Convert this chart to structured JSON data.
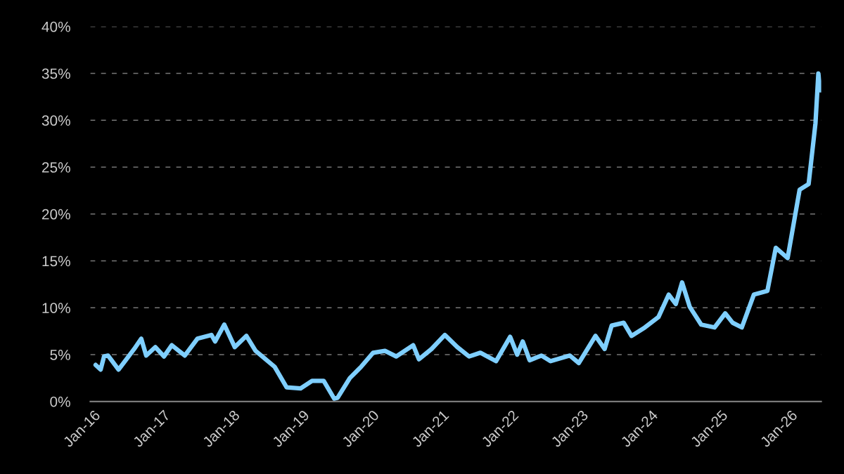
{
  "chart_data": {
    "type": "line",
    "x": [
      "2016-01-12",
      "2016-02-07",
      "2016-02-25",
      "2016-03-17",
      "2016-05-11",
      "2016-08-01",
      "2016-09-07",
      "2016-10-03",
      "2016-11-20",
      "2017-01-04",
      "2017-02-14",
      "2017-04-23",
      "2017-06-28",
      "2017-09-10",
      "2017-09-29",
      "2017-11-16",
      "2018-01-10",
      "2018-03-12",
      "2018-04-29",
      "2018-08-07",
      "2018-10-09",
      "2018-12-21",
      "2019-02-19",
      "2019-04-21",
      "2019-06-15",
      "2019-07-03",
      "2019-09-05",
      "2019-11-03",
      "2020-01-05",
      "2020-03-07",
      "2020-05-05",
      "2020-08-02",
      "2020-09-01",
      "2020-11-06",
      "2021-01-15",
      "2021-03-21",
      "2021-05-22",
      "2021-07-20",
      "2021-10-10",
      "2021-12-23",
      "2022-01-29",
      "2022-02-27",
      "2022-04-04",
      "2022-06-05",
      "2022-07-23",
      "2022-11-01",
      "2022-12-18",
      "2023-03-15",
      "2023-05-02",
      "2023-06-08",
      "2023-08-10",
      "2023-09-20",
      "2023-11-29",
      "2024-02-08",
      "2024-04-02",
      "2024-05-09",
      "2024-06-11",
      "2024-07-21",
      "2024-09-19",
      "2024-11-28",
      "2025-01-23",
      "2025-03-03",
      "2025-04-20",
      "2025-06-22",
      "2025-09-01",
      "2025-10-15",
      "2025-12-16",
      "2026-02-17",
      "2026-04-05",
      "2026-05-11",
      "2026-05-26",
      "2026-06-06"
    ],
    "series": [
      {
        "color": "#7fcfff",
        "values": [
          3.9,
          3.4,
          4.8,
          4.9,
          3.4,
          5.6,
          6.7,
          4.9,
          5.8,
          4.8,
          6.0,
          4.9,
          6.7,
          7.1,
          6.4,
          8.2,
          5.8,
          7.0,
          5.4,
          3.7,
          1.5,
          1.4,
          2.2,
          2.2,
          0.3,
          0.4,
          2.5,
          3.7,
          5.2,
          5.4,
          4.8,
          6.0,
          4.5,
          5.6,
          7.1,
          5.8,
          4.8,
          5.2,
          4.3,
          6.9,
          5.0,
          6.4,
          4.4,
          4.9,
          4.3,
          4.9,
          4.1,
          7.0,
          5.6,
          8.1,
          8.4,
          7.0,
          7.9,
          9.0,
          11.4,
          10.4,
          12.7,
          10.1,
          8.2,
          7.9,
          9.4,
          8.4,
          7.9,
          11.4,
          11.8,
          16.4,
          15.3,
          22.6,
          23.2,
          29.7,
          35.0,
          33.2
        ]
      }
    ],
    "xlim": [
      "2015-12-15",
      "2026-06-10"
    ],
    "xticks": [
      {
        "value": "2016-01",
        "label": "Jan-16"
      },
      {
        "value": "2017-01",
        "label": "Jan-17"
      },
      {
        "value": "2018-01",
        "label": "Jan-18"
      },
      {
        "value": "2019-01",
        "label": "Jan-19"
      },
      {
        "value": "2020-01",
        "label": "Jan-20"
      },
      {
        "value": "2021-01",
        "label": "Jan-21"
      },
      {
        "value": "2022-01",
        "label": "Jan-22"
      },
      {
        "value": "2023-01",
        "label": "Jan-23"
      },
      {
        "value": "2024-01",
        "label": "Jan-24"
      },
      {
        "value": "2025-01",
        "label": "Jan-25"
      },
      {
        "value": "2026-01",
        "label": "Jan-26"
      }
    ],
    "ylim": [
      0,
      40
    ],
    "yticks": [
      {
        "value": 0,
        "label": "0%"
      },
      {
        "value": 5,
        "label": "5%"
      },
      {
        "value": 10,
        "label": "10%"
      },
      {
        "value": 15,
        "label": "15%"
      },
      {
        "value": 20,
        "label": "20%"
      },
      {
        "value": 25,
        "label": "25%"
      },
      {
        "value": 30,
        "label": "30%"
      },
      {
        "value": 35,
        "label": "35%"
      },
      {
        "value": 40,
        "label": "40%"
      }
    ],
    "grid": "y",
    "line_style": "solid",
    "marker": "none"
  }
}
